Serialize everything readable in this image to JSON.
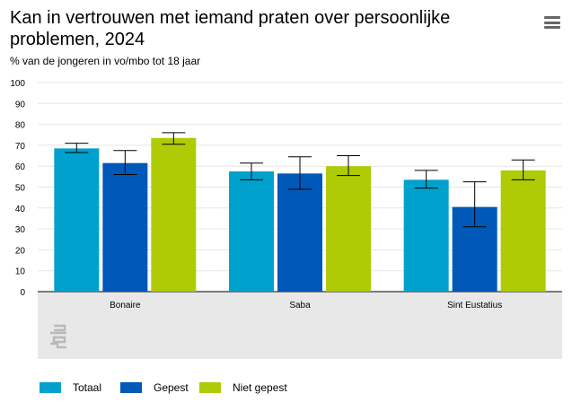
{
  "header": {
    "title": "Kan in vertrouwen met iemand praten over persoonlijke problemen, 2024",
    "subtitle": "% van de jongeren in vo/mbo tot 18 jaar",
    "menu_icon": "hamburger-menu-icon"
  },
  "watermark": "cbs-logo-icon",
  "chart_data": {
    "type": "bar",
    "title": "Kan in vertrouwen met iemand praten over persoonlijke problemen, 2024",
    "subtitle": "% van de jongeren in vo/mbo tot 18 jaar",
    "xlabel": "",
    "ylabel": "",
    "ylim": [
      0,
      100
    ],
    "yticks": [
      0,
      10,
      20,
      30,
      40,
      50,
      60,
      70,
      80,
      90,
      100
    ],
    "grid": true,
    "categories": [
      "Bonaire",
      "Saba",
      "Sint Eustatius"
    ],
    "series": [
      {
        "name": "Totaal",
        "color": "#00a1cd",
        "values": [
          68.5,
          57.5,
          53.5
        ],
        "error_low": [
          66.5,
          53.5,
          49.5
        ],
        "error_high": [
          71,
          61.5,
          58
        ]
      },
      {
        "name": "Gepest",
        "color": "#0058b8",
        "values": [
          61.5,
          56.5,
          40.5
        ],
        "error_low": [
          56,
          49,
          31
        ],
        "error_high": [
          67.5,
          64.5,
          52.5
        ]
      },
      {
        "name": "Niet gepest",
        "color": "#afcb05",
        "values": [
          73.5,
          60,
          58
        ],
        "error_low": [
          70.5,
          55.5,
          53.5
        ],
        "error_high": [
          76,
          65,
          63
        ]
      }
    ],
    "legend": "bottom-left"
  }
}
